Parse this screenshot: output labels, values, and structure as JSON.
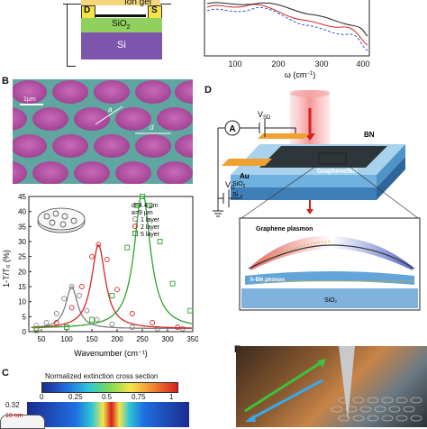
{
  "panel_a": {
    "device_labels": {
      "ion_gel": "Ion gel",
      "drain": "D",
      "source": "S",
      "oxide": "SiO",
      "oxide_sub": "2",
      "substrate": "Si"
    }
  },
  "panel_top_right": {
    "x_ticks": [
      "100",
      "200",
      "300",
      "400"
    ],
    "xlabel": "ω (cm",
    "xlabel_sup": "−1",
    "xlabel_end": ")"
  },
  "panel_b": {
    "letter": "B",
    "scale_label": "1μm",
    "dim_a": "a",
    "dim_d": "d"
  },
  "panel_b_spectrum": {
    "ylabel": "1-T/T₀ (%)",
    "xlabel": "Wavenumber (cm⁻¹)",
    "legend_params": [
      "d=4.4 μm",
      "a=9 μm"
    ],
    "series_names": [
      "1 layer",
      "2 layer",
      "5 layer"
    ],
    "x_ticks": [
      "50",
      "100",
      "150",
      "200",
      "250",
      "300",
      "350"
    ],
    "y_ticks": [
      "0",
      "5",
      "10",
      "15",
      "20",
      "25",
      "30",
      "35",
      "40",
      "45"
    ]
  },
  "chart_data": {
    "type": "line",
    "xlabel": "Wavenumber (cm⁻¹)",
    "ylabel": "1-T/T₀ (%)",
    "xlim": [
      25,
      350
    ],
    "ylim": [
      0,
      45
    ],
    "series": [
      {
        "name": "1 layer",
        "color": "#808080",
        "peak_x": 110,
        "peak_y": 15.0,
        "width": 28,
        "base": 1.0,
        "points": [
          [
            40,
            2
          ],
          [
            60,
            3
          ],
          [
            80,
            6
          ],
          [
            95,
            11
          ],
          [
            110,
            15
          ],
          [
            125,
            12
          ],
          [
            140,
            7
          ],
          [
            160,
            4
          ],
          [
            190,
            2.5
          ],
          [
            230,
            1.5
          ],
          [
            280,
            1
          ],
          [
            330,
            1
          ]
        ]
      },
      {
        "name": "2 layer",
        "color": "#d62728",
        "peak_x": 163,
        "peak_y": 29.0,
        "width": 33,
        "base": 1.0,
        "points": [
          [
            40,
            1
          ],
          [
            80,
            3
          ],
          [
            110,
            8
          ],
          [
            130,
            15
          ],
          [
            150,
            25
          ],
          [
            163,
            29
          ],
          [
            180,
            24
          ],
          [
            200,
            14
          ],
          [
            230,
            6
          ],
          [
            270,
            3
          ],
          [
            320,
            1.5
          ]
        ]
      },
      {
        "name": "5 layer",
        "color": "#2ca02c",
        "peak_x": 250,
        "peak_y": 47.0,
        "width": 38,
        "base": 1.0,
        "points": [
          [
            40,
            0.5
          ],
          [
            100,
            1.5
          ],
          [
            150,
            4
          ],
          [
            190,
            12
          ],
          [
            220,
            28
          ],
          [
            240,
            42
          ],
          [
            250,
            47
          ],
          [
            265,
            42
          ],
          [
            285,
            30
          ],
          [
            310,
            16
          ],
          [
            345,
            7
          ]
        ]
      }
    ]
  },
  "panel_c": {
    "letter": "C",
    "colorbar_title": "Normalized extinction cross section",
    "colorbar_ticks": [
      "0",
      "0.25",
      "0.5",
      "0.75",
      "1"
    ],
    "y_value": "0.32",
    "annotation": "10 nm"
  },
  "panel_d": {
    "letter": "D",
    "ammeter": "A",
    "vsd": "V",
    "vsd_sub": "SD",
    "vg": "V",
    "vg_sub": "G",
    "bn": "BN",
    "gbn": "Graphene/BN",
    "au": "Au",
    "sio2": "SiO",
    "sio2_sub": "2",
    "si": "Si",
    "plasmon": "Graphene plasmon",
    "phonon": "h-BN phonon",
    "inset_sio2": "SiO₂"
  },
  "panel_e": {
    "letter": "E"
  }
}
